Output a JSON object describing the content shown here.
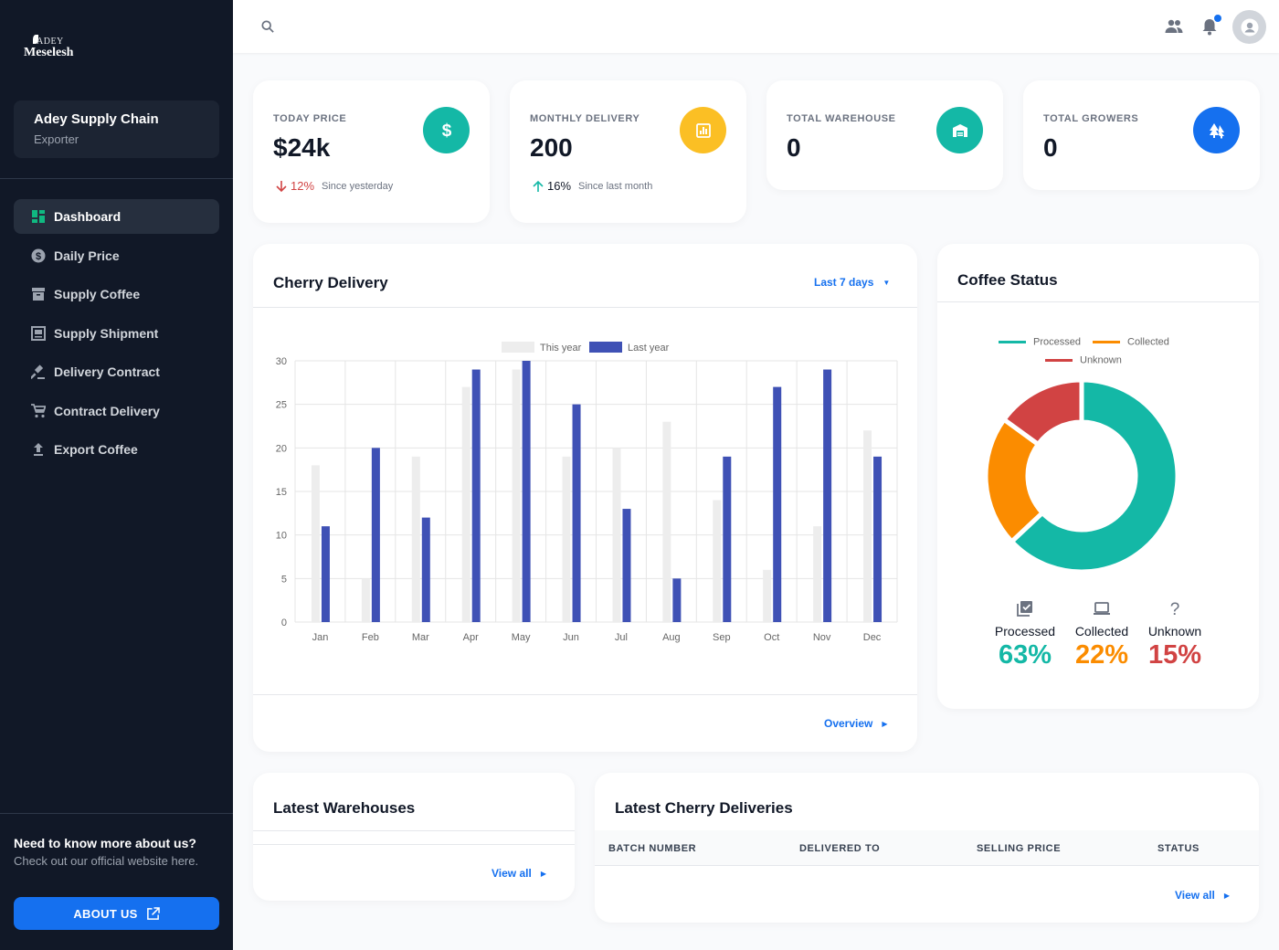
{
  "brand": {
    "logo_small": "ADEY",
    "logo_big": "Meselesh"
  },
  "org": {
    "name": "Adey Supply Chain",
    "role": "Exporter"
  },
  "nav": [
    {
      "label": "Dashboard",
      "icon": "dashboard-icon",
      "active": true
    },
    {
      "label": "Daily Price",
      "icon": "dollar-icon"
    },
    {
      "label": "Supply Coffee",
      "icon": "archive-icon"
    },
    {
      "label": "Supply Shipment",
      "icon": "shipment-icon"
    },
    {
      "label": "Delivery Contract",
      "icon": "gavel-icon"
    },
    {
      "label": "Contract Delivery",
      "icon": "cart-icon"
    },
    {
      "label": "Export Coffee",
      "icon": "upload-icon"
    }
  ],
  "about": {
    "title": "Need to know more about us?",
    "subtitle": "Check out our official website here.",
    "button": "ABOUT US"
  },
  "stats": [
    {
      "label": "TODAY PRICE",
      "value": "$24k",
      "trend_pct": "12%",
      "trend_text": "Since yesterday",
      "trend_dir": "down",
      "color": "#14b8a6",
      "icon": "dollar-icon"
    },
    {
      "label": "MONTHLY DELIVERY",
      "value": "200",
      "trend_pct": "16%",
      "trend_text": "Since last month",
      "trend_dir": "up",
      "color": "#fbbf24",
      "icon": "chart-icon"
    },
    {
      "label": "TOTAL WAREHOUSE",
      "value": "0",
      "color": "#14b8a6",
      "icon": "warehouse-icon"
    },
    {
      "label": "TOTAL GROWERS",
      "value": "0",
      "color": "#1570ef",
      "icon": "trees-icon"
    }
  ],
  "cherry": {
    "title": "Cherry Delivery",
    "range": "Last 7 days",
    "footer_link": "Overview"
  },
  "chart_data": [
    {
      "type": "bar",
      "categories": [
        "Jan",
        "Feb",
        "Mar",
        "Apr",
        "May",
        "Jun",
        "Jul",
        "Aug",
        "Sep",
        "Oct",
        "Nov",
        "Dec"
      ],
      "series": [
        {
          "name": "This year",
          "values": [
            18,
            5,
            19,
            27,
            29,
            19,
            20,
            23,
            14,
            6,
            11,
            22
          ],
          "color": "#ededed"
        },
        {
          "name": "Last year",
          "values": [
            11,
            20,
            12,
            29,
            30,
            25,
            13,
            5,
            19,
            27,
            29,
            19
          ],
          "color": "#3f51b5"
        }
      ],
      "ylim": [
        0,
        30
      ],
      "yticks": [
        0,
        5,
        10,
        15,
        20,
        25,
        30
      ],
      "grid": true,
      "legend": "top"
    },
    {
      "type": "pie",
      "title": "Coffee Status",
      "labels": [
        "Processed",
        "Collected",
        "Unknown"
      ],
      "values": [
        63,
        22,
        15
      ],
      "colors": [
        "#14b8a6",
        "#fb8c00",
        "#d14343"
      ],
      "legend": "top"
    }
  ],
  "coffee_status": {
    "title": "Coffee Status",
    "items": [
      {
        "label": "Processed",
        "value": "63%",
        "color": "#14b8a6",
        "icon": "check-box-icon"
      },
      {
        "label": "Collected",
        "value": "22%",
        "color": "#fb8c00",
        "icon": "laptop-icon"
      },
      {
        "label": "Unknown",
        "value": "15%",
        "color": "#d14343",
        "icon": "question-icon"
      }
    ]
  },
  "warehouses": {
    "title": "Latest Warehouses",
    "link": "View all"
  },
  "deliveries": {
    "title": "Latest Cherry Deliveries",
    "columns": [
      "BATCH NUMBER",
      "DELIVERED TO",
      "SELLING PRICE",
      "STATUS"
    ],
    "link": "View all"
  }
}
